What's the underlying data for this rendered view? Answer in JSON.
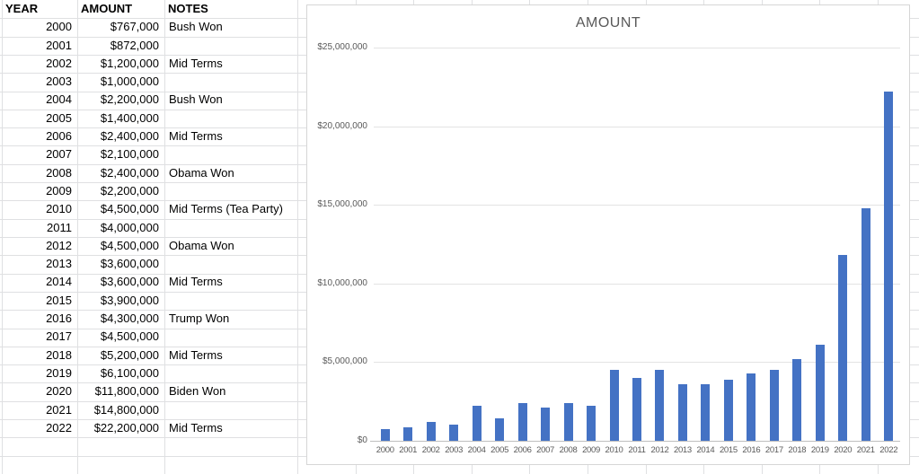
{
  "sheet": {
    "headers": [
      "YEAR",
      "AMOUNT",
      "NOTES"
    ],
    "rows": [
      {
        "year": "2000",
        "amount": "$767,000",
        "note": "Bush Won"
      },
      {
        "year": "2001",
        "amount": "$872,000",
        "note": ""
      },
      {
        "year": "2002",
        "amount": "$1,200,000",
        "note": "Mid Terms"
      },
      {
        "year": "2003",
        "amount": "$1,000,000",
        "note": ""
      },
      {
        "year": "2004",
        "amount": "$2,200,000",
        "note": "Bush Won"
      },
      {
        "year": "2005",
        "amount": "$1,400,000",
        "note": ""
      },
      {
        "year": "2006",
        "amount": "$2,400,000",
        "note": "Mid Terms"
      },
      {
        "year": "2007",
        "amount": "$2,100,000",
        "note": ""
      },
      {
        "year": "2008",
        "amount": "$2,400,000",
        "note": "Obama Won"
      },
      {
        "year": "2009",
        "amount": "$2,200,000",
        "note": ""
      },
      {
        "year": "2010",
        "amount": "$4,500,000",
        "note": "Mid Terms (Tea Party)"
      },
      {
        "year": "2011",
        "amount": "$4,000,000",
        "note": ""
      },
      {
        "year": "2012",
        "amount": "$4,500,000",
        "note": "Obama Won"
      },
      {
        "year": "2013",
        "amount": "$3,600,000",
        "note": ""
      },
      {
        "year": "2014",
        "amount": "$3,600,000",
        "note": "Mid Terms"
      },
      {
        "year": "2015",
        "amount": "$3,900,000",
        "note": ""
      },
      {
        "year": "2016",
        "amount": "$4,300,000",
        "note": "Trump Won"
      },
      {
        "year": "2017",
        "amount": "$4,500,000",
        "note": ""
      },
      {
        "year": "2018",
        "amount": "$5,200,000",
        "note": "Mid Terms"
      },
      {
        "year": "2019",
        "amount": "$6,100,000",
        "note": ""
      },
      {
        "year": "2020",
        "amount": "$11,800,000",
        "note": "Biden Won"
      },
      {
        "year": "2021",
        "amount": "$14,800,000",
        "note": ""
      },
      {
        "year": "2022",
        "amount": "$22,200,000",
        "note": "Mid Terms"
      }
    ]
  },
  "chart_data": {
    "type": "bar",
    "title": "AMOUNT",
    "categories": [
      "2000",
      "2001",
      "2002",
      "2003",
      "2004",
      "2005",
      "2006",
      "2007",
      "2008",
      "2009",
      "2010",
      "2011",
      "2012",
      "2013",
      "2014",
      "2015",
      "2016",
      "2017",
      "2018",
      "2019",
      "2020",
      "2021",
      "2022"
    ],
    "values": [
      767000,
      872000,
      1200000,
      1000000,
      2200000,
      1400000,
      2400000,
      2100000,
      2400000,
      2200000,
      4500000,
      4000000,
      4500000,
      3600000,
      3600000,
      3900000,
      4300000,
      4500000,
      5200000,
      6100000,
      11800000,
      14800000,
      22200000
    ],
    "xlabel": "",
    "ylabel": "",
    "ylim": [
      0,
      25000000
    ],
    "y_tick_interval": 5000000,
    "y_tick_labels": [
      "$0",
      "$5,000,000",
      "$10,000,000",
      "$15,000,000",
      "$20,000,000",
      "$25,000,000"
    ],
    "grid": true,
    "legend": "none",
    "bar_color": "#4472C4",
    "gridline_color": "#E3E3E3",
    "axis_label_color": "#595959",
    "title_color": "#595959"
  }
}
